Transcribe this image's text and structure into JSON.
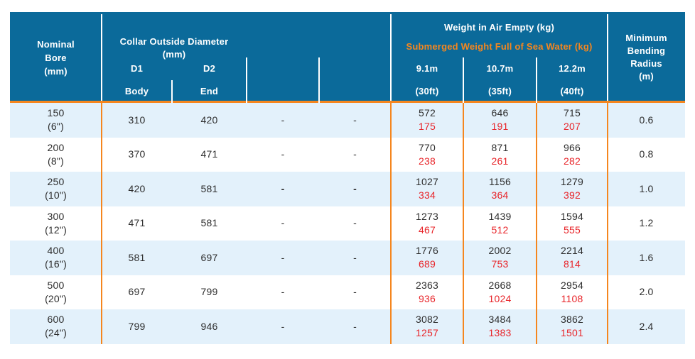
{
  "colors": {
    "header_bg": "#0B6A9A",
    "accent_orange": "#F5861E",
    "row_alt_blue": "#E3F1FB",
    "submerged_red": "#E8252A",
    "text": "#2D2D2D"
  },
  "table": {
    "header": {
      "nominal_bore": {
        "lines": [
          "Nominal",
          "Bore",
          "(mm)"
        ]
      },
      "collar": {
        "title": "Collar Outside Diameter",
        "unit": "(mm)",
        "d1": "D1",
        "d2": "D2",
        "d1_sub": "Body",
        "d2_sub": "End"
      },
      "weight": {
        "title_air": "Weight in Air Empty (kg)",
        "title_submerged": "Submerged Weight Full of Sea Water (kg)",
        "lengths": [
          {
            "m": "9.1m",
            "ft": "(30ft)"
          },
          {
            "m": "10.7m",
            "ft": "(35ft)"
          },
          {
            "m": "12.2m",
            "ft": "(40ft)"
          }
        ]
      },
      "bending": {
        "lines": [
          "Minimum",
          "Bending",
          "Radius",
          "(m)"
        ]
      }
    },
    "rows": [
      {
        "bore": "150",
        "bore_in": "(6\")",
        "d1": "310",
        "d2": "420",
        "c4": "-",
        "c5": "-",
        "dash_bold": false,
        "weights": [
          {
            "air": "572",
            "sub": "175"
          },
          {
            "air": "646",
            "sub": "191"
          },
          {
            "air": "715",
            "sub": "207"
          }
        ],
        "radius": "0.6"
      },
      {
        "bore": "200",
        "bore_in": "(8\")",
        "d1": "370",
        "d2": "471",
        "c4": "-",
        "c5": "-",
        "dash_bold": false,
        "weights": [
          {
            "air": "770",
            "sub": "238"
          },
          {
            "air": "871",
            "sub": "261"
          },
          {
            "air": "966",
            "sub": "282"
          }
        ],
        "radius": "0.8"
      },
      {
        "bore": "250",
        "bore_in": "(10\")",
        "d1": "420",
        "d2": "581",
        "c4": "-",
        "c5": "-",
        "dash_bold": true,
        "weights": [
          {
            "air": "1027",
            "sub": "334"
          },
          {
            "air": "1156",
            "sub": "364"
          },
          {
            "air": "1279",
            "sub": "392"
          }
        ],
        "radius": "1.0"
      },
      {
        "bore": "300",
        "bore_in": "(12\")",
        "d1": "471",
        "d2": "581",
        "c4": "-",
        "c5": "-",
        "dash_bold": false,
        "weights": [
          {
            "air": "1273",
            "sub": "467"
          },
          {
            "air": "1439",
            "sub": "512"
          },
          {
            "air": "1594",
            "sub": "555"
          }
        ],
        "radius": "1.2"
      },
      {
        "bore": "400",
        "bore_in": "(16\")",
        "d1": "581",
        "d2": "697",
        "c4": "-",
        "c5": "-",
        "dash_bold": false,
        "weights": [
          {
            "air": "1776",
            "sub": "689"
          },
          {
            "air": "2002",
            "sub": "753"
          },
          {
            "air": "2214",
            "sub": "814"
          }
        ],
        "radius": "1.6"
      },
      {
        "bore": "500",
        "bore_in": "(20\")",
        "d1": "697",
        "d2": "799",
        "c4": "-",
        "c5": "-",
        "dash_bold": false,
        "weights": [
          {
            "air": "2363",
            "sub": "936"
          },
          {
            "air": "2668",
            "sub": "1024"
          },
          {
            "air": "2954",
            "sub": "1108"
          }
        ],
        "radius": "2.0"
      },
      {
        "bore": "600",
        "bore_in": "(24\")",
        "d1": "799",
        "d2": "946",
        "c4": "-",
        "c5": "-",
        "dash_bold": false,
        "weights": [
          {
            "air": "3082",
            "sub": "1257"
          },
          {
            "air": "3484",
            "sub": "1383"
          },
          {
            "air": "3862",
            "sub": "1501"
          }
        ],
        "radius": "2.4"
      }
    ]
  }
}
